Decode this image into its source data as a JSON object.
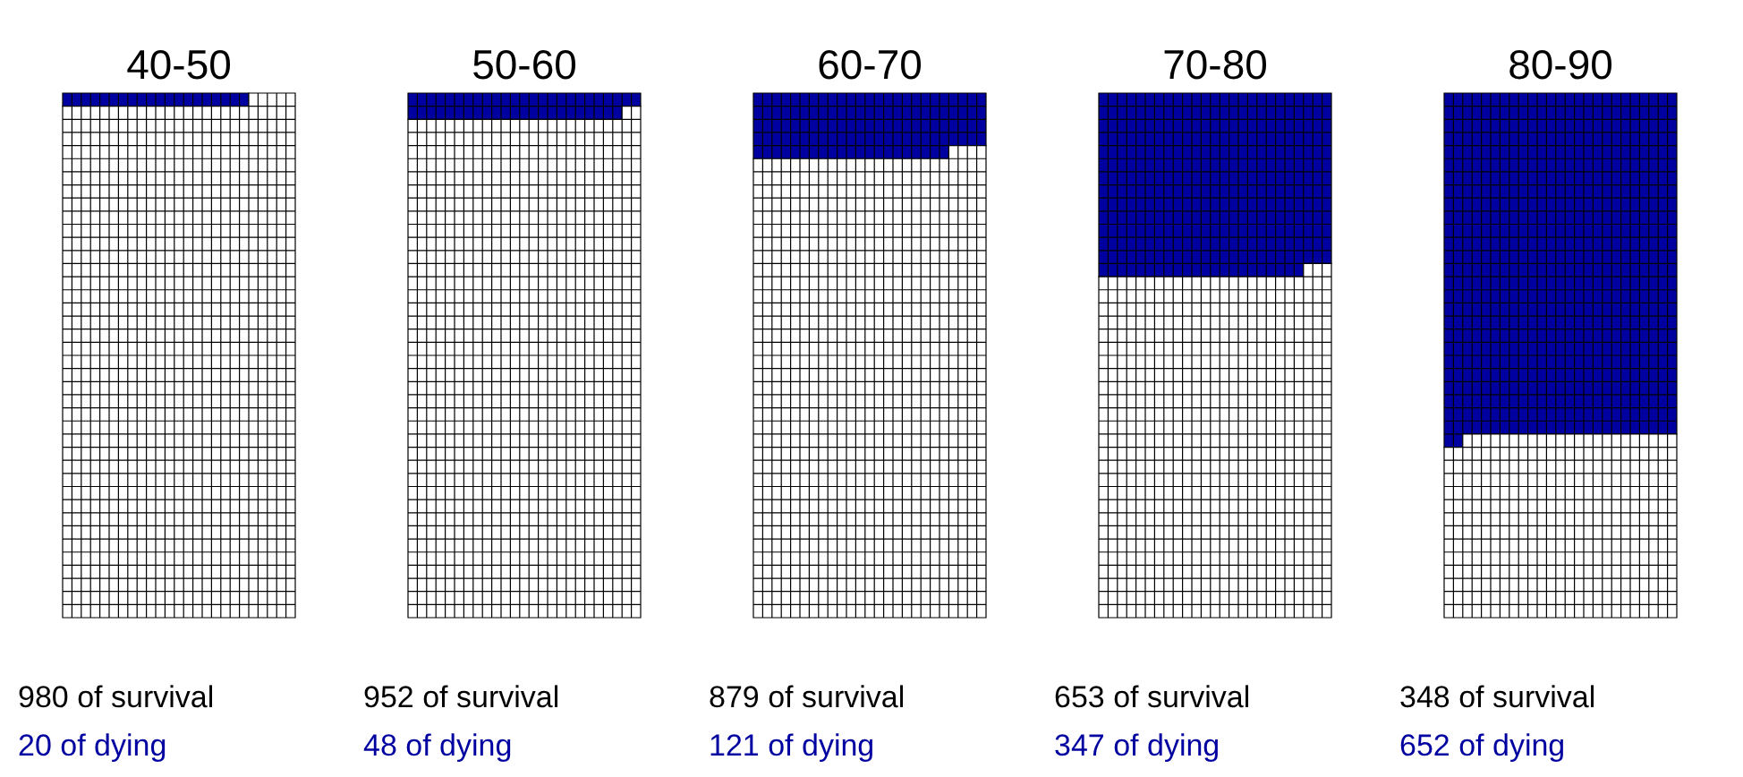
{
  "chart_data": {
    "type": "other",
    "categories": [
      "40-50",
      "50-60",
      "60-70",
      "70-80",
      "80-90"
    ],
    "series": [
      {
        "color": "#0000a0",
        "values": [
          20,
          48,
          121,
          347,
          652
        ],
        "value_labels": [
          "20 of dying",
          "48 of dying",
          "121 of dying",
          "347 of dying",
          "652 of dying"
        ]
      },
      {
        "color": "#ffffff",
        "values": [
          980,
          952,
          879,
          653,
          348
        ],
        "value_labels": [
          "980 of survival",
          "952 of survival",
          "879 of survival",
          "653 of survival",
          "348 of survival"
        ]
      }
    ]
  }
}
